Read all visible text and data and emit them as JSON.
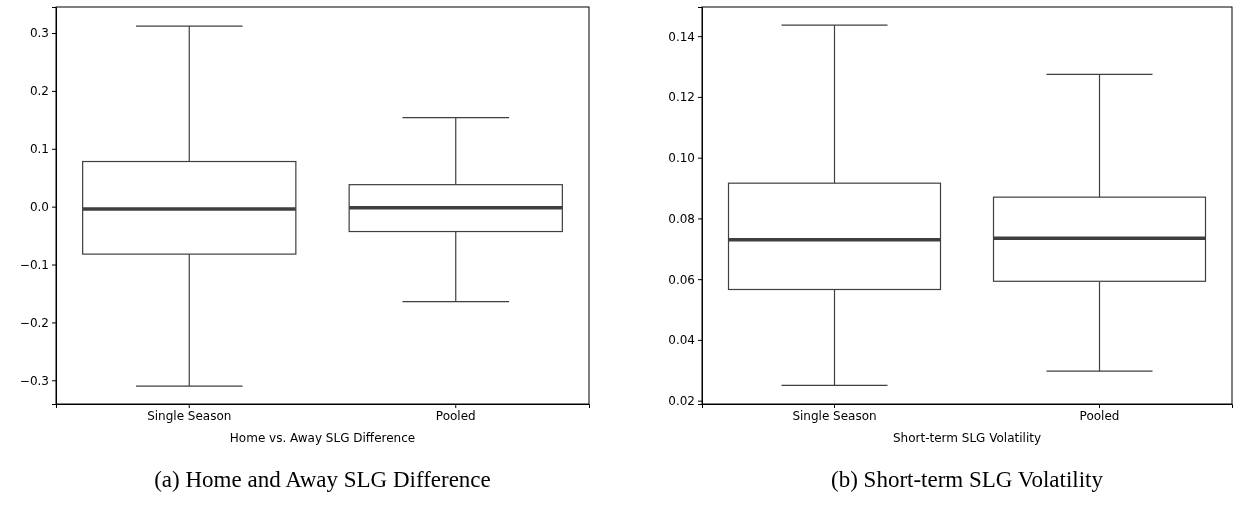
{
  "chart_data": [
    {
      "type": "box",
      "categories": [
        "Single Season",
        "Pooled"
      ],
      "xlabel": "Home vs. Away SLG Difference",
      "ylim": [
        -0.341,
        0.345
      ],
      "yticks": [
        {
          "value": -0.3,
          "label": "−0.3"
        },
        {
          "value": -0.2,
          "label": "−0.2"
        },
        {
          "value": -0.1,
          "label": "−0.1"
        },
        {
          "value": 0,
          "label": "0.0"
        },
        {
          "value": 0.1,
          "label": "0.1"
        },
        {
          "value": 0.2,
          "label": "0.2"
        },
        {
          "value": 0.3,
          "label": "0.3"
        }
      ],
      "grid": false,
      "boxes": [
        {
          "low": -0.31,
          "q1": -0.082,
          "median": -0.004,
          "q3": 0.078,
          "high": 0.312
        },
        {
          "low": -0.164,
          "q1": -0.043,
          "median": -0.002,
          "q3": 0.038,
          "high": 0.154
        }
      ],
      "annotations": [
        "(a) Home and Away SLG Difference"
      ]
    },
    {
      "type": "box",
      "categories": [
        "Single Season",
        "Pooled"
      ],
      "xlabel": "Short-term SLG Volatility",
      "ylim": [
        0.0189,
        0.1496
      ],
      "yticks": [
        {
          "value": 0.02,
          "label": "0.02"
        },
        {
          "value": 0.04,
          "label": "0.04"
        },
        {
          "value": 0.06,
          "label": "0.06"
        },
        {
          "value": 0.08,
          "label": "0.08"
        },
        {
          "value": 0.1,
          "label": "0.10"
        },
        {
          "value": 0.12,
          "label": "0.12"
        },
        {
          "value": 0.14,
          "label": "0.14"
        }
      ],
      "grid": false,
      "boxes": [
        {
          "low": 0.025,
          "q1": 0.0566,
          "median": 0.073,
          "q3": 0.0916,
          "high": 0.1436
        },
        {
          "low": 0.0297,
          "q1": 0.0593,
          "median": 0.0735,
          "q3": 0.087,
          "high": 0.1274
        }
      ],
      "annotations": [
        "(b) Short-term SLG Volatility"
      ]
    }
  ]
}
